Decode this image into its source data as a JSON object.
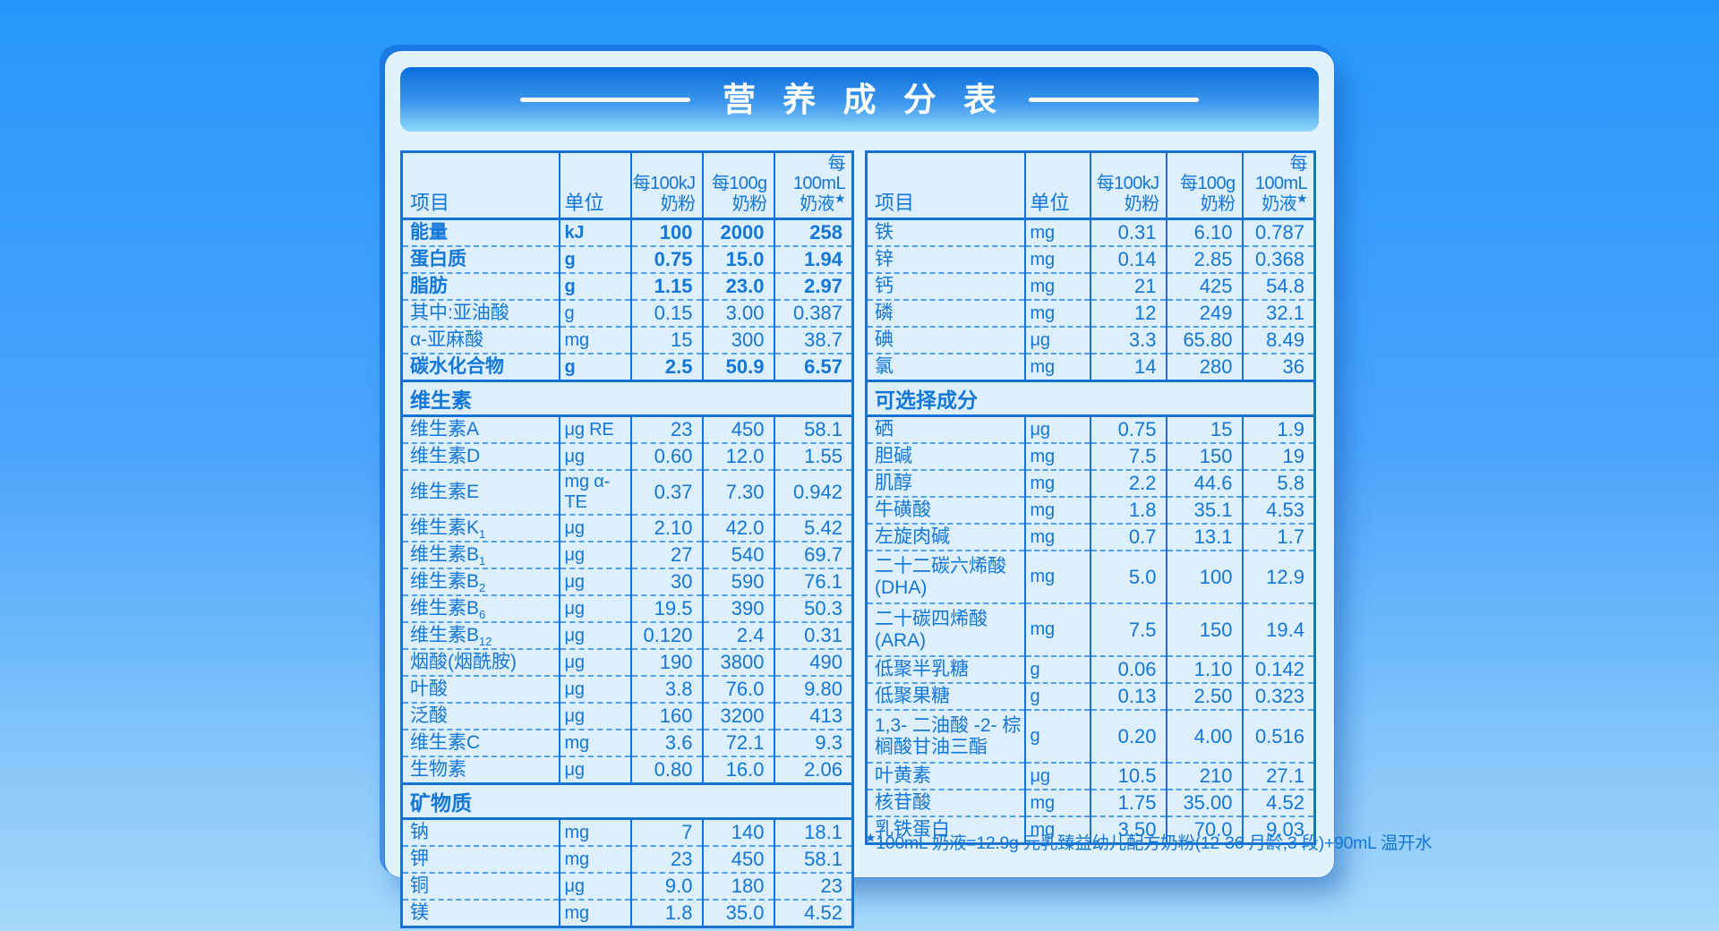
{
  "title": "营 养 成 分 表",
  "footnote_star": "★",
  "footnote": "100mL 奶液=12.9g 元乳臻益幼儿配方奶粉(12-36 月龄,3 段)+90mL 温开水",
  "colors": {
    "background_top": "#2697fb",
    "background_bottom": "#a6d9fa",
    "card_bg": "#e2f2fd",
    "table_bg": "#ddeefc",
    "text_blue": "#1377d7",
    "border_blue": "#1673d5",
    "band_top": "#0a6edc",
    "band_bottom": "#8fd7fb"
  },
  "columns": {
    "item": "项目",
    "unit": "单位",
    "per100kj_l1": "每100kJ",
    "per100kj_l2": "奶粉",
    "per100g_l1": "每100g",
    "per100g_l2": "奶粉",
    "per100ml_l1": "每100mL",
    "per100ml_l2": "奶液",
    "per100ml_sup": "★"
  },
  "left_table": {
    "rows": [
      {
        "type": "item",
        "bold": true,
        "label": "能量",
        "unit": "kJ",
        "v": [
          "100",
          "2000",
          "258"
        ]
      },
      {
        "type": "item",
        "bold": true,
        "label": "蛋白质",
        "unit": "g",
        "v": [
          "0.75",
          "15.0",
          "1.94"
        ]
      },
      {
        "type": "item",
        "bold": true,
        "label": "脂肪",
        "unit": "g",
        "v": [
          "1.15",
          "23.0",
          "2.97"
        ]
      },
      {
        "type": "item",
        "label": "其中:亚油酸",
        "unit": "g",
        "v": [
          "0.15",
          "3.00",
          "0.387"
        ]
      },
      {
        "type": "item",
        "label": "α-亚麻酸",
        "unit": "mg",
        "v": [
          "15",
          "300",
          "38.7"
        ]
      },
      {
        "type": "item",
        "bold": true,
        "label": "碳水化合物",
        "unit": "g",
        "v": [
          "2.5",
          "50.9",
          "6.57"
        ]
      },
      {
        "type": "section",
        "label": "维生素"
      },
      {
        "type": "item",
        "label": "维生素A",
        "unit": "μg RE",
        "v": [
          "23",
          "450",
          "58.1"
        ]
      },
      {
        "type": "item",
        "label": "维生素D",
        "unit": "μg",
        "v": [
          "0.60",
          "12.0",
          "1.55"
        ]
      },
      {
        "type": "item",
        "label": "维生素E",
        "unit": "mg α-TE",
        "v": [
          "0.37",
          "7.30",
          "0.942"
        ]
      },
      {
        "type": "item",
        "label": "维生素K",
        "sub": "1",
        "unit": "μg",
        "v": [
          "2.10",
          "42.0",
          "5.42"
        ]
      },
      {
        "type": "item",
        "label": "维生素B",
        "sub": "1",
        "unit": "μg",
        "v": [
          "27",
          "540",
          "69.7"
        ]
      },
      {
        "type": "item",
        "label": "维生素B",
        "sub": "2",
        "unit": "μg",
        "v": [
          "30",
          "590",
          "76.1"
        ]
      },
      {
        "type": "item",
        "label": "维生素B",
        "sub": "6",
        "unit": "μg",
        "v": [
          "19.5",
          "390",
          "50.3"
        ]
      },
      {
        "type": "item",
        "label": "维生素B",
        "sub": "12",
        "unit": "μg",
        "v": [
          "0.120",
          "2.4",
          "0.31"
        ]
      },
      {
        "type": "item",
        "label": "烟酸(烟酰胺)",
        "unit": "μg",
        "v": [
          "190",
          "3800",
          "490"
        ]
      },
      {
        "type": "item",
        "label": "叶酸",
        "unit": "μg",
        "v": [
          "3.8",
          "76.0",
          "9.80"
        ]
      },
      {
        "type": "item",
        "label": "泛酸",
        "unit": "μg",
        "v": [
          "160",
          "3200",
          "413"
        ]
      },
      {
        "type": "item",
        "label": "维生素C",
        "unit": "mg",
        "v": [
          "3.6",
          "72.1",
          "9.3"
        ]
      },
      {
        "type": "item",
        "label": "生物素",
        "unit": "μg",
        "v": [
          "0.80",
          "16.0",
          "2.06"
        ]
      },
      {
        "type": "section",
        "label": "矿物质"
      },
      {
        "type": "item",
        "label": "钠",
        "unit": "mg",
        "v": [
          "7",
          "140",
          "18.1"
        ]
      },
      {
        "type": "item",
        "label": "钾",
        "unit": "mg",
        "v": [
          "23",
          "450",
          "58.1"
        ]
      },
      {
        "type": "item",
        "label": "铜",
        "unit": "μg",
        "v": [
          "9.0",
          "180",
          "23"
        ]
      },
      {
        "type": "item",
        "label": "镁",
        "unit": "mg",
        "v": [
          "1.8",
          "35.0",
          "4.52"
        ]
      }
    ]
  },
  "right_table": {
    "rows": [
      {
        "type": "item",
        "label": "铁",
        "unit": "mg",
        "v": [
          "0.31",
          "6.10",
          "0.787"
        ]
      },
      {
        "type": "item",
        "label": "锌",
        "unit": "mg",
        "v": [
          "0.14",
          "2.85",
          "0.368"
        ]
      },
      {
        "type": "item",
        "label": "钙",
        "unit": "mg",
        "v": [
          "21",
          "425",
          "54.8"
        ]
      },
      {
        "type": "item",
        "label": "磷",
        "unit": "mg",
        "v": [
          "12",
          "249",
          "32.1"
        ]
      },
      {
        "type": "item",
        "label": "碘",
        "unit": "μg",
        "v": [
          "3.3",
          "65.80",
          "8.49"
        ]
      },
      {
        "type": "item",
        "label": "氯",
        "unit": "mg",
        "v": [
          "14",
          "280",
          "36"
        ]
      },
      {
        "type": "section",
        "label": "可选择成分"
      },
      {
        "type": "item",
        "label": "硒",
        "unit": "μg",
        "v": [
          "0.75",
          "15",
          "1.9"
        ]
      },
      {
        "type": "item",
        "label": "胆碱",
        "unit": "mg",
        "v": [
          "7.5",
          "150",
          "19"
        ]
      },
      {
        "type": "item",
        "label": "肌醇",
        "unit": "mg",
        "v": [
          "2.2",
          "44.6",
          "5.8"
        ]
      },
      {
        "type": "item",
        "label": "牛磺酸",
        "unit": "mg",
        "v": [
          "1.8",
          "35.1",
          "4.53"
        ]
      },
      {
        "type": "item",
        "label": "左旋肉碱",
        "unit": "mg",
        "v": [
          "0.7",
          "13.1",
          "1.7"
        ]
      },
      {
        "type": "item",
        "lines": [
          "二十二碳六烯酸",
          "(DHA)"
        ],
        "unit": "mg",
        "v": [
          "5.0",
          "100",
          "12.9"
        ]
      },
      {
        "type": "item",
        "lines": [
          "二十碳四烯酸",
          "(ARA)"
        ],
        "unit": "mg",
        "v": [
          "7.5",
          "150",
          "19.4"
        ]
      },
      {
        "type": "item",
        "label": "低聚半乳糖",
        "unit": "g",
        "v": [
          "0.06",
          "1.10",
          "0.142"
        ]
      },
      {
        "type": "item",
        "label": "低聚果糖",
        "unit": "g",
        "v": [
          "0.13",
          "2.50",
          "0.323"
        ]
      },
      {
        "type": "item",
        "lines": [
          "1,3- 二油酸 -2- 棕",
          "榈酸甘油三酯"
        ],
        "unit": "g",
        "v": [
          "0.20",
          "4.00",
          "0.516"
        ]
      },
      {
        "type": "item",
        "label": "叶黄素",
        "unit": "μg",
        "v": [
          "10.5",
          "210",
          "27.1"
        ]
      },
      {
        "type": "item",
        "label": "核苷酸",
        "unit": "mg",
        "v": [
          "1.75",
          "35.00",
          "4.52"
        ]
      },
      {
        "type": "item",
        "label": "乳铁蛋白",
        "unit": "mg",
        "v": [
          "3.50",
          "70.0",
          "9.03"
        ]
      }
    ]
  }
}
